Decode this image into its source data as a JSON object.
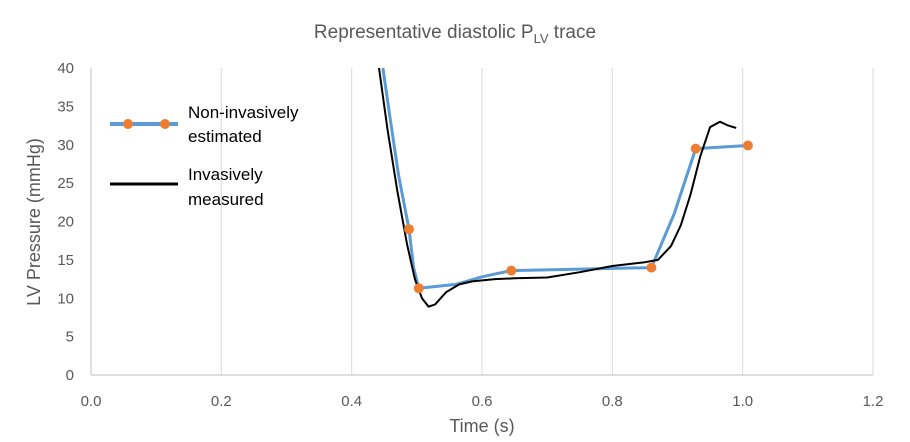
{
  "chart_data": {
    "type": "line",
    "title": "Representative diastolic P",
    "title_subscript": "LV",
    "title_suffix": " trace",
    "xlabel": "Time (s)",
    "ylabel": "LV Pressure (mmHg)",
    "xlim": [
      0,
      1.2
    ],
    "ylim": [
      0,
      40
    ],
    "x_ticks": [
      "0.0",
      "0.2",
      "0.4",
      "0.6",
      "0.8",
      "1.0",
      "1.2"
    ],
    "y_ticks": [
      "0",
      "5",
      "10",
      "15",
      "20",
      "25",
      "30",
      "35",
      "40"
    ],
    "grid": "vertical",
    "legend_position": "top-left",
    "series": [
      {
        "name_line1": "Non-invasively",
        "name_line2": "estimated",
        "color": "#5B9BD5",
        "marker_color": "#ED7D31",
        "points": [
          {
            "x": 0.448,
            "y": 40.0,
            "marker": false
          },
          {
            "x": 0.458,
            "y": 34.0,
            "marker": false
          },
          {
            "x": 0.472,
            "y": 26.0,
            "marker": false
          },
          {
            "x": 0.488,
            "y": 19.0,
            "marker": true
          },
          {
            "x": 0.495,
            "y": 14.0,
            "marker": false
          },
          {
            "x": 0.503,
            "y": 11.3,
            "marker": true
          },
          {
            "x": 0.56,
            "y": 11.8,
            "marker": false
          },
          {
            "x": 0.6,
            "y": 12.8,
            "marker": false
          },
          {
            "x": 0.645,
            "y": 13.6,
            "marker": true
          },
          {
            "x": 0.75,
            "y": 13.8,
            "marker": false
          },
          {
            "x": 0.86,
            "y": 14.0,
            "marker": true
          },
          {
            "x": 0.895,
            "y": 21.0,
            "marker": false
          },
          {
            "x": 0.928,
            "y": 29.5,
            "marker": true
          },
          {
            "x": 1.008,
            "y": 29.9,
            "marker": true
          }
        ]
      },
      {
        "name_line1": "Invasively",
        "name_line2": "measured",
        "color": "#000000",
        "points": [
          {
            "x": 0.442,
            "y": 40.0
          },
          {
            "x": 0.455,
            "y": 32.0
          },
          {
            "x": 0.47,
            "y": 24.0
          },
          {
            "x": 0.485,
            "y": 17.0
          },
          {
            "x": 0.497,
            "y": 12.5
          },
          {
            "x": 0.508,
            "y": 10.0
          },
          {
            "x": 0.518,
            "y": 8.9
          },
          {
            "x": 0.528,
            "y": 9.2
          },
          {
            "x": 0.545,
            "y": 10.8
          },
          {
            "x": 0.565,
            "y": 11.8
          },
          {
            "x": 0.585,
            "y": 12.2
          },
          {
            "x": 0.62,
            "y": 12.5
          },
          {
            "x": 0.65,
            "y": 12.6
          },
          {
            "x": 0.7,
            "y": 12.7
          },
          {
            "x": 0.75,
            "y": 13.4
          },
          {
            "x": 0.8,
            "y": 14.2
          },
          {
            "x": 0.85,
            "y": 14.7
          },
          {
            "x": 0.87,
            "y": 15.0
          },
          {
            "x": 0.89,
            "y": 16.8
          },
          {
            "x": 0.905,
            "y": 19.5
          },
          {
            "x": 0.92,
            "y": 23.5
          },
          {
            "x": 0.935,
            "y": 28.5
          },
          {
            "x": 0.95,
            "y": 32.3
          },
          {
            "x": 0.965,
            "y": 33.0
          },
          {
            "x": 0.978,
            "y": 32.5
          },
          {
            "x": 0.99,
            "y": 32.2
          }
        ]
      }
    ]
  }
}
